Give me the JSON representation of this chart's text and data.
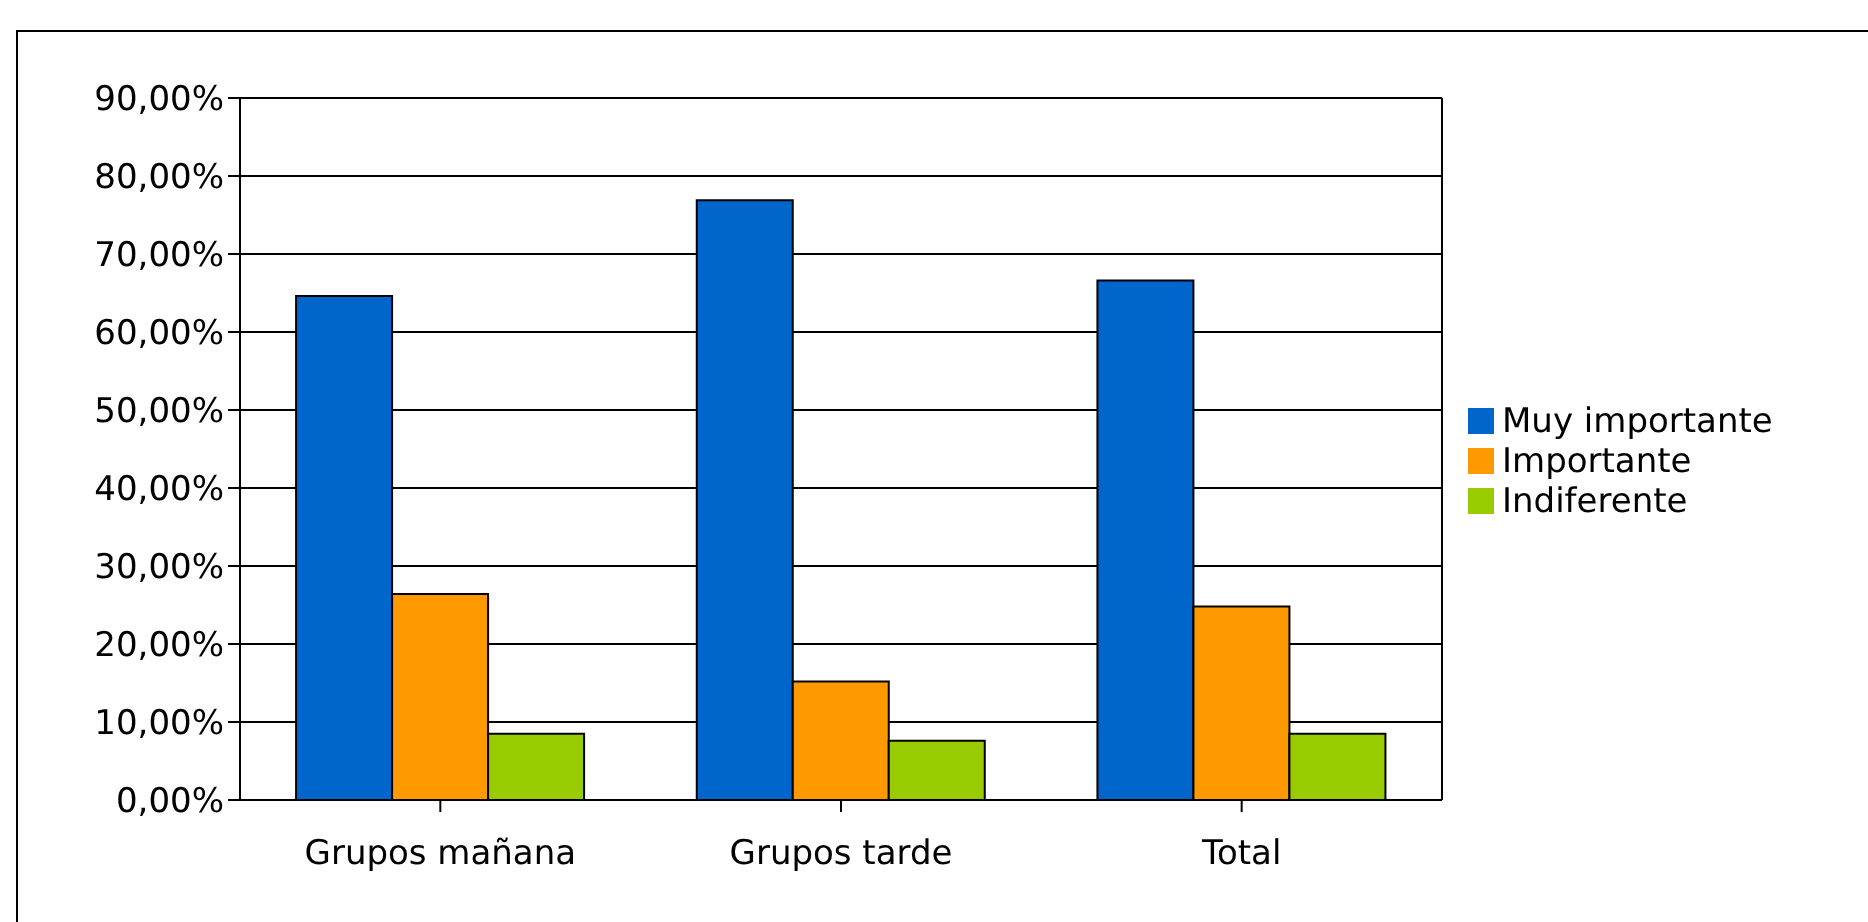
{
  "chart_data": {
    "type": "bar",
    "categories": [
      "Grupos mañana",
      "Grupos tarde",
      "Total"
    ],
    "series": [
      {
        "name": "Muy importante",
        "color": "#0066cc",
        "values": [
          64.6,
          76.9,
          66.6
        ]
      },
      {
        "name": "Importante",
        "color": "#ff9900",
        "values": [
          26.4,
          15.2,
          24.8
        ]
      },
      {
        "name": "Indiferente",
        "color": "#99cc00",
        "values": [
          8.5,
          7.6,
          8.5
        ]
      }
    ],
    "ylim": [
      0,
      90
    ],
    "yticks": [
      {
        "value": 0,
        "label": "0,00%"
      },
      {
        "value": 10,
        "label": "10,00%"
      },
      {
        "value": 20,
        "label": "20,00%"
      },
      {
        "value": 30,
        "label": "30,00%"
      },
      {
        "value": 40,
        "label": "40,00%"
      },
      {
        "value": 50,
        "label": "50,00%"
      },
      {
        "value": 60,
        "label": "60,00%"
      },
      {
        "value": 70,
        "label": "70,00%"
      },
      {
        "value": 80,
        "label": "80,00%"
      },
      {
        "value": 90,
        "label": "90,00%"
      }
    ],
    "grid": "y",
    "legend": "right"
  }
}
